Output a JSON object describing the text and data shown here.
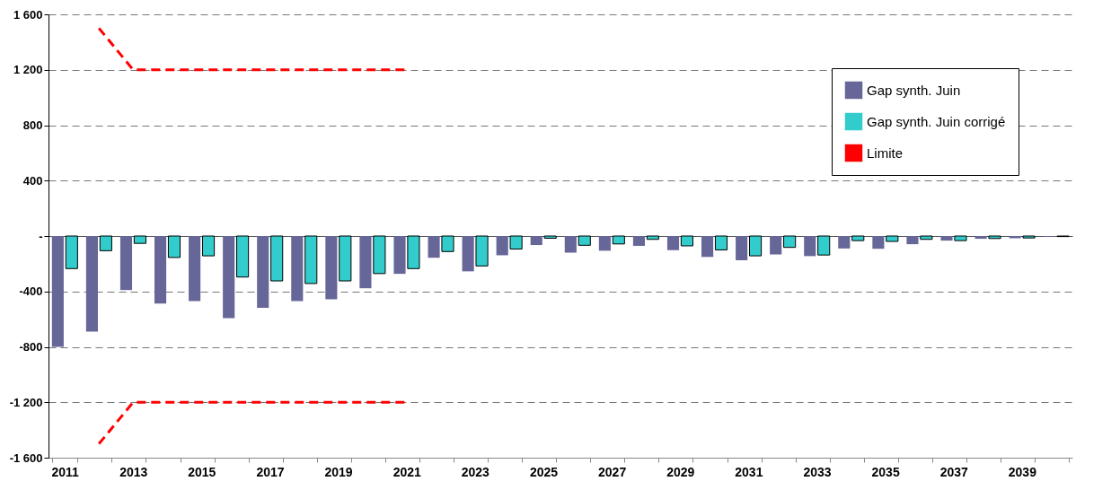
{
  "chart_data": {
    "type": "bar",
    "categories": [
      "2011",
      null,
      "2013",
      null,
      "2015",
      null,
      "2017",
      null,
      "2019",
      null,
      "2021",
      null,
      "2023",
      null,
      "2025",
      null,
      "2027",
      null,
      "2029",
      null,
      "2031",
      null,
      "2033",
      null,
      "2035",
      null,
      "2037",
      null,
      "2039",
      null
    ],
    "series": [
      {
        "name": "Gap synth. Juin",
        "color": "#666699",
        "values": [
          -800,
          -690,
          -390,
          -488,
          -469,
          -592,
          -518,
          -469,
          -457,
          -377,
          -273,
          -157,
          -255,
          -139,
          -65,
          -120,
          -106,
          -71,
          -102,
          -151,
          -175,
          -133,
          -145,
          -90,
          -92,
          -59,
          -33,
          -20,
          -16,
          -6
        ]
      },
      {
        "name": "Gap synth. Juin corrigé",
        "color": "#33cccc",
        "values": [
          -235,
          -106,
          -53,
          -155,
          -143,
          -296,
          -324,
          -343,
          -324,
          -271,
          -235,
          -112,
          -216,
          -94,
          -16,
          -67,
          -57,
          -24,
          -71,
          -100,
          -143,
          -82,
          -137,
          -33,
          -39,
          -24,
          -33,
          -18,
          -14,
          -4
        ]
      },
      {
        "name": "Limite",
        "type": "line",
        "color": "#ff0000",
        "line_style": "dashed",
        "values": [
          null,
          1500,
          1200,
          1200,
          1200,
          1200,
          1200,
          1200,
          1200,
          1200,
          1200,
          null,
          null,
          null,
          null,
          null,
          null,
          null,
          null,
          null,
          null,
          null,
          null,
          null,
          null,
          null,
          null,
          null,
          null,
          null
        ]
      },
      {
        "type": "line",
        "color": "#ff0000",
        "line_style": "dashed",
        "values": [
          null,
          -1500,
          -1200,
          -1200,
          -1200,
          -1200,
          -1200,
          -1200,
          -1200,
          -1200,
          -1200,
          null,
          null,
          null,
          null,
          null,
          null,
          null,
          null,
          null,
          null,
          null,
          null,
          null,
          null,
          null,
          null,
          null,
          null,
          null
        ]
      }
    ],
    "ylim": [
      -1600,
      1600
    ],
    "yticks": [
      {
        "value": -1600,
        "label": "-1 600"
      },
      {
        "value": -1200,
        "label": "-1 200"
      },
      -800,
      -400,
      {
        "value": 0,
        "label": "-"
      },
      400,
      800,
      {
        "value": 1200,
        "label": "1 200"
      },
      {
        "value": 1600,
        "label": "1 600"
      }
    ],
    "grid": "y",
    "legend": "top right",
    "marker": "none"
  }
}
